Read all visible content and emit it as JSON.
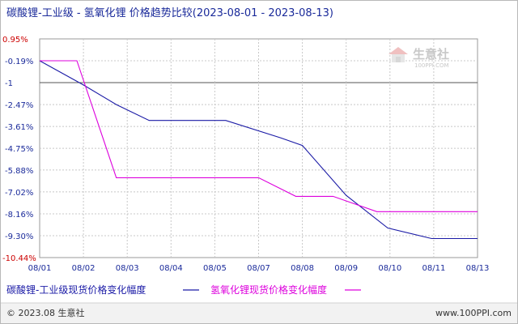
{
  "chart_data": {
    "type": "line",
    "title": "碳酸锂-工业级 - 氢氧化锂 价格趋势比较(2023-08-01 - 2023-08-13)",
    "categories": [
      "08/01",
      "08/02",
      "08/03",
      "08/04",
      "08/05",
      "08/07",
      "08/08",
      "08/09",
      "08/10",
      "08/11",
      "08/13"
    ],
    "y_ticks": [
      "0.95%",
      "-0.19%",
      "-1",
      "-2.47%",
      "-3.61%",
      "-4.75%",
      "-5.88%",
      "-7.02%",
      "-8.16%",
      "-9.30%",
      "-10.44%"
    ],
    "y_tick_values": [
      0.95,
      -0.19,
      -1.33,
      -2.47,
      -3.61,
      -4.75,
      -5.88,
      -7.02,
      -8.16,
      -9.3,
      -10.44
    ],
    "ylim": [
      -10.44,
      0.95
    ],
    "baseline": -1.33,
    "grid": true,
    "legend_position": "bottom-left",
    "series": [
      {
        "name": "碳酸锂-工业级现货价格变化幅度",
        "color": "#1a1aa6",
        "points": [
          [
            0,
            -0.19
          ],
          [
            1,
            -1.45
          ],
          [
            1.75,
            -2.47
          ],
          [
            2.5,
            -3.3
          ],
          [
            4.25,
            -3.3
          ],
          [
            5.5,
            -4.2
          ],
          [
            6,
            -4.6
          ],
          [
            7,
            -7.2
          ],
          [
            7.95,
            -8.9
          ],
          [
            8.95,
            -9.45
          ],
          [
            10,
            -9.45
          ]
        ]
      },
      {
        "name": "氢氧化锂现货价格变化幅度",
        "color": "#dd00dd",
        "points": [
          [
            0,
            -0.19
          ],
          [
            0.85,
            -0.19
          ],
          [
            1.75,
            -6.28
          ],
          [
            5,
            -6.28
          ],
          [
            5.85,
            -7.25
          ],
          [
            6.7,
            -7.25
          ],
          [
            7.7,
            -8.05
          ],
          [
            10,
            -8.05
          ]
        ]
      }
    ]
  },
  "watermark": {
    "brand": "生意社",
    "url": "100PPI.COM"
  },
  "footer": {
    "copyright": "© 2023.08 生意社",
    "site": "www.100PPI.com"
  }
}
